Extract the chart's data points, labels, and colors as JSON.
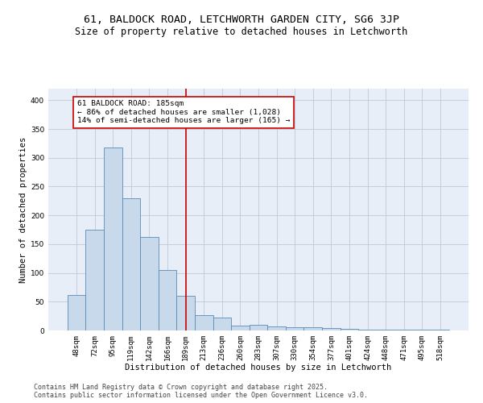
{
  "title1": "61, BALDOCK ROAD, LETCHWORTH GARDEN CITY, SG6 3JP",
  "title2": "Size of property relative to detached houses in Letchworth",
  "xlabel": "Distribution of detached houses by size in Letchworth",
  "ylabel": "Number of detached properties",
  "categories": [
    "48sqm",
    "72sqm",
    "95sqm",
    "119sqm",
    "142sqm",
    "166sqm",
    "189sqm",
    "213sqm",
    "236sqm",
    "260sqm",
    "283sqm",
    "307sqm",
    "330sqm",
    "354sqm",
    "377sqm",
    "401sqm",
    "424sqm",
    "448sqm",
    "471sqm",
    "495sqm",
    "518sqm"
  ],
  "values": [
    62,
    175,
    318,
    230,
    163,
    105,
    60,
    27,
    22,
    9,
    10,
    7,
    6,
    5,
    4,
    3,
    1,
    1,
    1,
    1,
    1
  ],
  "bar_color": "#c9d9ec",
  "bar_edge_color": "#5a8ab5",
  "vline_x": 6,
  "vline_color": "#cc0000",
  "annotation_text": "61 BALDOCK ROAD: 185sqm\n← 86% of detached houses are smaller (1,028)\n14% of semi-detached houses are larger (165) →",
  "annotation_box_color": "#cc0000",
  "ylim": [
    0,
    420
  ],
  "yticks": [
    0,
    50,
    100,
    150,
    200,
    250,
    300,
    350,
    400
  ],
  "grid_color": "#c0c8d8",
  "bg_color": "#e8eef8",
  "footer1": "Contains HM Land Registry data © Crown copyright and database right 2025.",
  "footer2": "Contains public sector information licensed under the Open Government Licence v3.0.",
  "title_fontsize": 9.5,
  "subtitle_fontsize": 8.5,
  "axis_fontsize": 7.5,
  "tick_fontsize": 6.5,
  "ann_fontsize": 6.8,
  "footer_fontsize": 6.0
}
